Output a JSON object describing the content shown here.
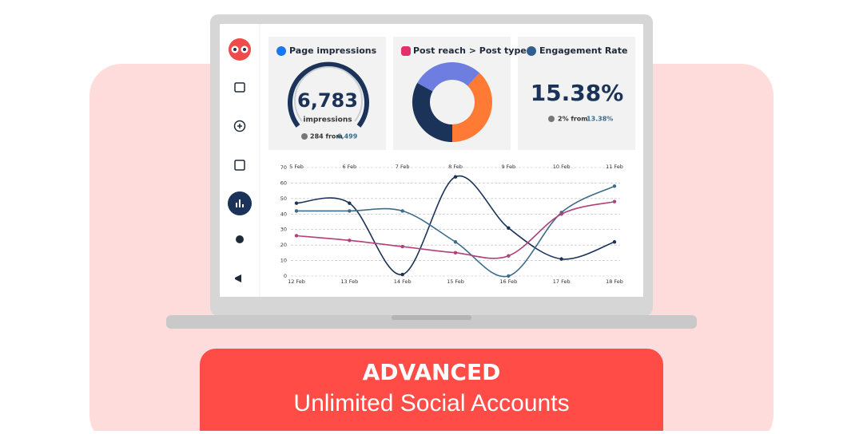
{
  "impressions_card": {
    "title": "Page impressions",
    "value": "6,783",
    "label": "impressions",
    "change": "284 from",
    "base": "6,499"
  },
  "engagement_card": {
    "title": "Engagement Rate",
    "value": "15.38%",
    "change": "2% from",
    "base": "13.38%"
  },
  "chart_data": [
    {
      "type": "pie",
      "title": "Post reach > Post type",
      "values": [
        33,
        29,
        38
      ],
      "colors": [
        "#1b3358",
        "#6d7de0",
        "#ff7a35"
      ]
    },
    {
      "type": "line",
      "categories": [
        "12 Feb",
        "13 Feb",
        "14 Feb",
        "15 Feb",
        "16 Feb",
        "17 Feb",
        "18 Feb"
      ],
      "categories_top": [
        "5 Feb",
        "6 Feb",
        "7 Feb",
        "8 Feb",
        "9 Feb",
        "10 Feb",
        "11 Feb"
      ],
      "ylim": [
        0,
        70
      ],
      "yticks": [
        0,
        10,
        20,
        30,
        40,
        50,
        60,
        70
      ],
      "grid": true,
      "series": [
        {
          "color": "#1b3358",
          "values": [
            47,
            47,
            1,
            64,
            31,
            11,
            22
          ]
        },
        {
          "color": "#3e6b8a",
          "values": [
            42,
            42,
            42,
            22,
            0,
            41,
            58
          ]
        },
        {
          "color": "#b0407a",
          "values": [
            26,
            23,
            19,
            15,
            13,
            40,
            48
          ]
        }
      ]
    }
  ],
  "banner": {
    "title": "ADVANCED",
    "subtitle": "Unlimited Social Accounts"
  }
}
